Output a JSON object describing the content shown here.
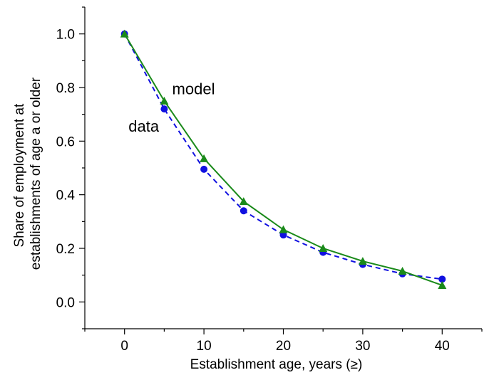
{
  "chart_data": {
    "type": "line",
    "xlabel": "Establishment age, years (≥)",
    "ylabel_lines": [
      "Share of employment at",
      "establishments of age a or older"
    ],
    "xlim": [
      -5,
      45
    ],
    "ylim": [
      -0.1,
      1.1
    ],
    "xticks": [
      0,
      10,
      20,
      30,
      40
    ],
    "yticks": [
      0.0,
      0.2,
      0.4,
      0.6,
      0.8,
      1.0
    ],
    "xtick_labels": [
      "0",
      "10",
      "20",
      "30",
      "40"
    ],
    "ytick_labels": [
      "0.0",
      "0.2",
      "0.4",
      "0.6",
      "0.8",
      "1.0"
    ],
    "grid": false,
    "series": [
      {
        "key": "model",
        "label": "model",
        "color": "#1a8a1a",
        "line_style": "solid",
        "marker": "triangle",
        "x": [
          0,
          5,
          10,
          15,
          20,
          25,
          30,
          35,
          40
        ],
        "y": [
          1.0,
          0.75,
          0.535,
          0.375,
          0.27,
          0.2,
          0.152,
          0.115,
          0.062
        ]
      },
      {
        "key": "data",
        "label": "data",
        "color": "#1010e0",
        "line_style": "dashed",
        "marker": "circle",
        "x": [
          0,
          5,
          10,
          15,
          20,
          25,
          30,
          35,
          40
        ],
        "y": [
          1.0,
          0.72,
          0.495,
          0.34,
          0.25,
          0.185,
          0.14,
          0.105,
          0.085
        ]
      }
    ],
    "annotations": [
      {
        "key": "model",
        "text": "model",
        "x": 6,
        "y": 0.775
      },
      {
        "key": "data",
        "text": "data",
        "x": 0.5,
        "y": 0.635
      }
    ]
  }
}
